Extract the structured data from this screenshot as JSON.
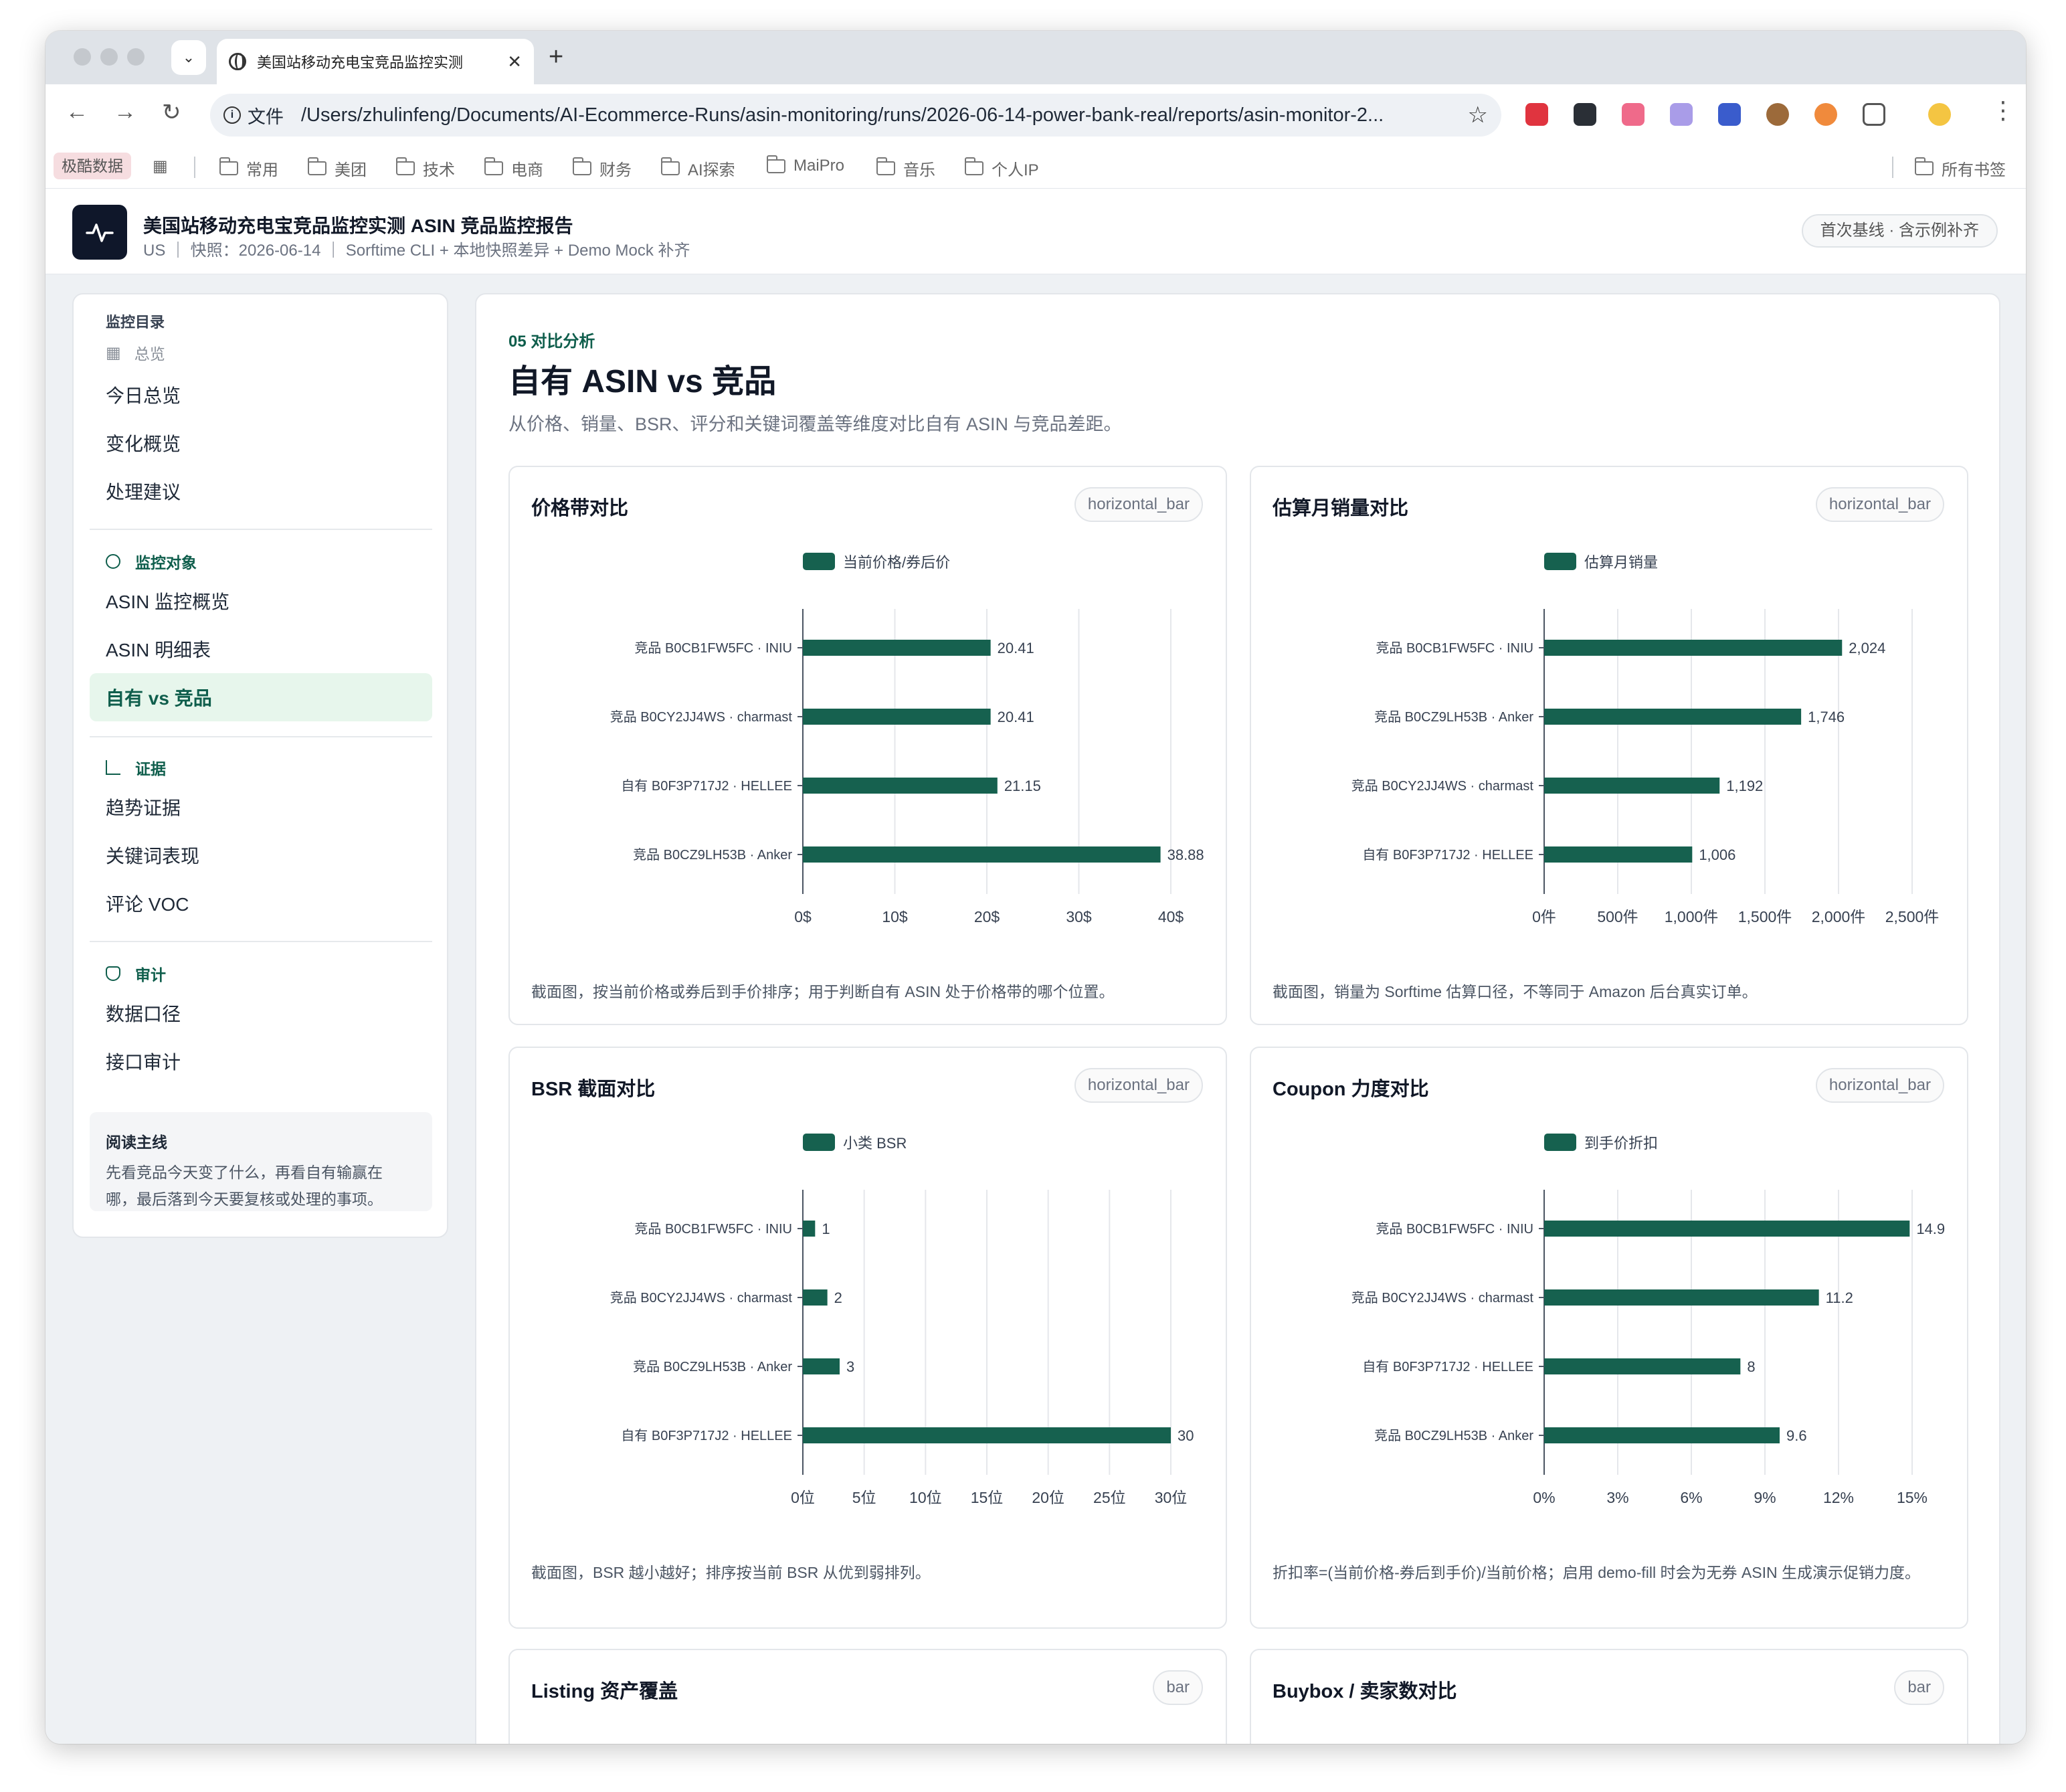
{
  "browser": {
    "tab_title": "美国站移动充电宝竞品监控实测",
    "url_scheme": "文件",
    "url": "/Users/zhulinfeng/Documents/AI-Ecommerce-Runs/asin-monitoring/runs/2026-06-14-power-bank-real/reports/asin-monitor-2...",
    "bookmarks_badge": "极酷数据",
    "bookmarks": [
      "常用",
      "美团",
      "技术",
      "电商",
      "财务",
      "AI探索",
      "MaiPro",
      "音乐",
      "个人IP"
    ],
    "all_bookmarks": "所有书签"
  },
  "header": {
    "title": "美国站移动充电宝竞品监控实测 ASIN 竞品监控报告",
    "subtitle": "US ｜ 快照：2026-06-14 ｜ Sorftime CLI + 本地快照差异 + Demo Mock 补齐",
    "badge": "首次基线 · 含示例补齐"
  },
  "sidebar": {
    "heading": "监控目录",
    "overview_link": "总览",
    "group1": [
      "今日总览",
      "变化概览",
      "处理建议"
    ],
    "section_targets": "监控对象",
    "group2": [
      "ASIN 监控概览",
      "ASIN 明细表",
      "自有 vs 竞品"
    ],
    "section_evidence": "证据",
    "group3": [
      "趋势证据",
      "关键词表现",
      "评论 VOC"
    ],
    "section_audit": "审计",
    "group4": [
      "数据口径",
      "接口审计"
    ],
    "note_title": "阅读主线",
    "note_line1": "先看竞品今天变了什么，再看自有输赢在",
    "note_line2": "哪，最后落到今天要复核或处理的事项。"
  },
  "main": {
    "eyebrow": "05 对比分析",
    "title": "自有 ASIN vs 竞品",
    "desc": "从价格、销量、BSR、评分和关键词覆盖等维度对比自有 ASIN 与竞品差距。"
  },
  "colors": {
    "accent": "#16614f",
    "accent_light": "#e7f6ec"
  },
  "chart_data": [
    {
      "type": "horizontal_bar",
      "title": "价格带对比",
      "tag": "horizontal_bar",
      "legend": "当前价格/券后价",
      "categories": [
        "竞品 B0CB1FW5FC · INIU",
        "竞品 B0CY2JJ4WS · charmast",
        "自有 B0F3P717J2 · HELLEE",
        "竞品 B0CZ9LH53B · Anker"
      ],
      "values": [
        20.41,
        20.41,
        21.15,
        38.88
      ],
      "value_labels": [
        "20.41",
        "20.41",
        "21.15",
        "38.88"
      ],
      "ticks": [
        "0$",
        "10$",
        "20$",
        "30$",
        "40$"
      ],
      "xlim": [
        0,
        40
      ],
      "note": "截面图，按当前价格或券后到手价排序；用于判断自有 ASIN 处于价格带的哪个位置。"
    },
    {
      "type": "horizontal_bar",
      "title": "估算月销量对比",
      "tag": "horizontal_bar",
      "legend": "估算月销量",
      "categories": [
        "竞品 B0CB1FW5FC · INIU",
        "竞品 B0CZ9LH53B · Anker",
        "竞品 B0CY2JJ4WS · charmast",
        "自有 B0F3P717J2 · HELLEE"
      ],
      "values": [
        2024,
        1746,
        1192,
        1006
      ],
      "value_labels": [
        "2,024",
        "1,746",
        "1,192",
        "1,006"
      ],
      "ticks": [
        "0件",
        "500件",
        "1,000件",
        "1,500件",
        "2,000件",
        "2,500件"
      ],
      "xlim": [
        0,
        2500
      ],
      "note": "截面图，销量为 Sorftime 估算口径，不等同于 Amazon 后台真实订单。"
    },
    {
      "type": "horizontal_bar",
      "title": "BSR 截面对比",
      "tag": "horizontal_bar",
      "legend": "小类 BSR",
      "categories": [
        "竞品 B0CB1FW5FC · INIU",
        "竞品 B0CY2JJ4WS · charmast",
        "竞品 B0CZ9LH53B · Anker",
        "自有 B0F3P717J2 · HELLEE"
      ],
      "values": [
        1,
        2,
        3,
        30
      ],
      "value_labels": [
        "1",
        "2",
        "3",
        "30"
      ],
      "ticks": [
        "0位",
        "5位",
        "10位",
        "15位",
        "20位",
        "25位",
        "30位"
      ],
      "xlim": [
        0,
        30
      ],
      "note": "截面图，BSR 越小越好；排序按当前 BSR 从优到弱排列。"
    },
    {
      "type": "horizontal_bar",
      "title": "Coupon 力度对比",
      "tag": "horizontal_bar",
      "legend": "到手价折扣",
      "categories": [
        "竞品 B0CB1FW5FC · INIU",
        "竞品 B0CY2JJ4WS · charmast",
        "自有 B0F3P717J2 · HELLEE",
        "竞品 B0CZ9LH53B · Anker"
      ],
      "values": [
        14.9,
        11.2,
        8,
        9.6
      ],
      "value_labels": [
        "14.9",
        "11.2",
        "8",
        "9.6"
      ],
      "ticks": [
        "0%",
        "3%",
        "6%",
        "9%",
        "12%",
        "15%"
      ],
      "xlim": [
        0,
        15
      ],
      "note": "折扣率=(当前价格-券后到手价)/当前价格；启用 demo-fill 时会为无券 ASIN 生成演示促销力度。"
    }
  ],
  "lower_cards": [
    {
      "title": "Listing 资产覆盖",
      "tag": "bar"
    },
    {
      "title": "Buybox / 卖家数对比",
      "tag": "bar"
    }
  ]
}
